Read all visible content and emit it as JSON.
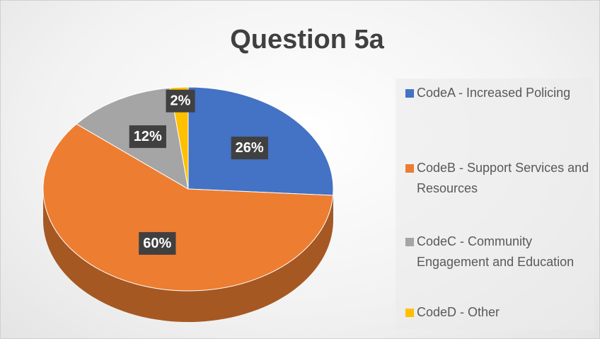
{
  "chart_data": {
    "type": "pie",
    "title": "Question 5a",
    "categories": [
      "CodeA - Increased Policing",
      "CodeB - Support Services and Resources",
      "CodeC - Community Engagement and Education",
      "CodeD - Other"
    ],
    "values": [
      26,
      60,
      12,
      2
    ],
    "value_labels": [
      "26%",
      "60%",
      "12%",
      "2%"
    ],
    "colors": [
      "#4472c4",
      "#ed7d31",
      "#a5a5a5",
      "#ffc000"
    ],
    "legend": "right"
  }
}
